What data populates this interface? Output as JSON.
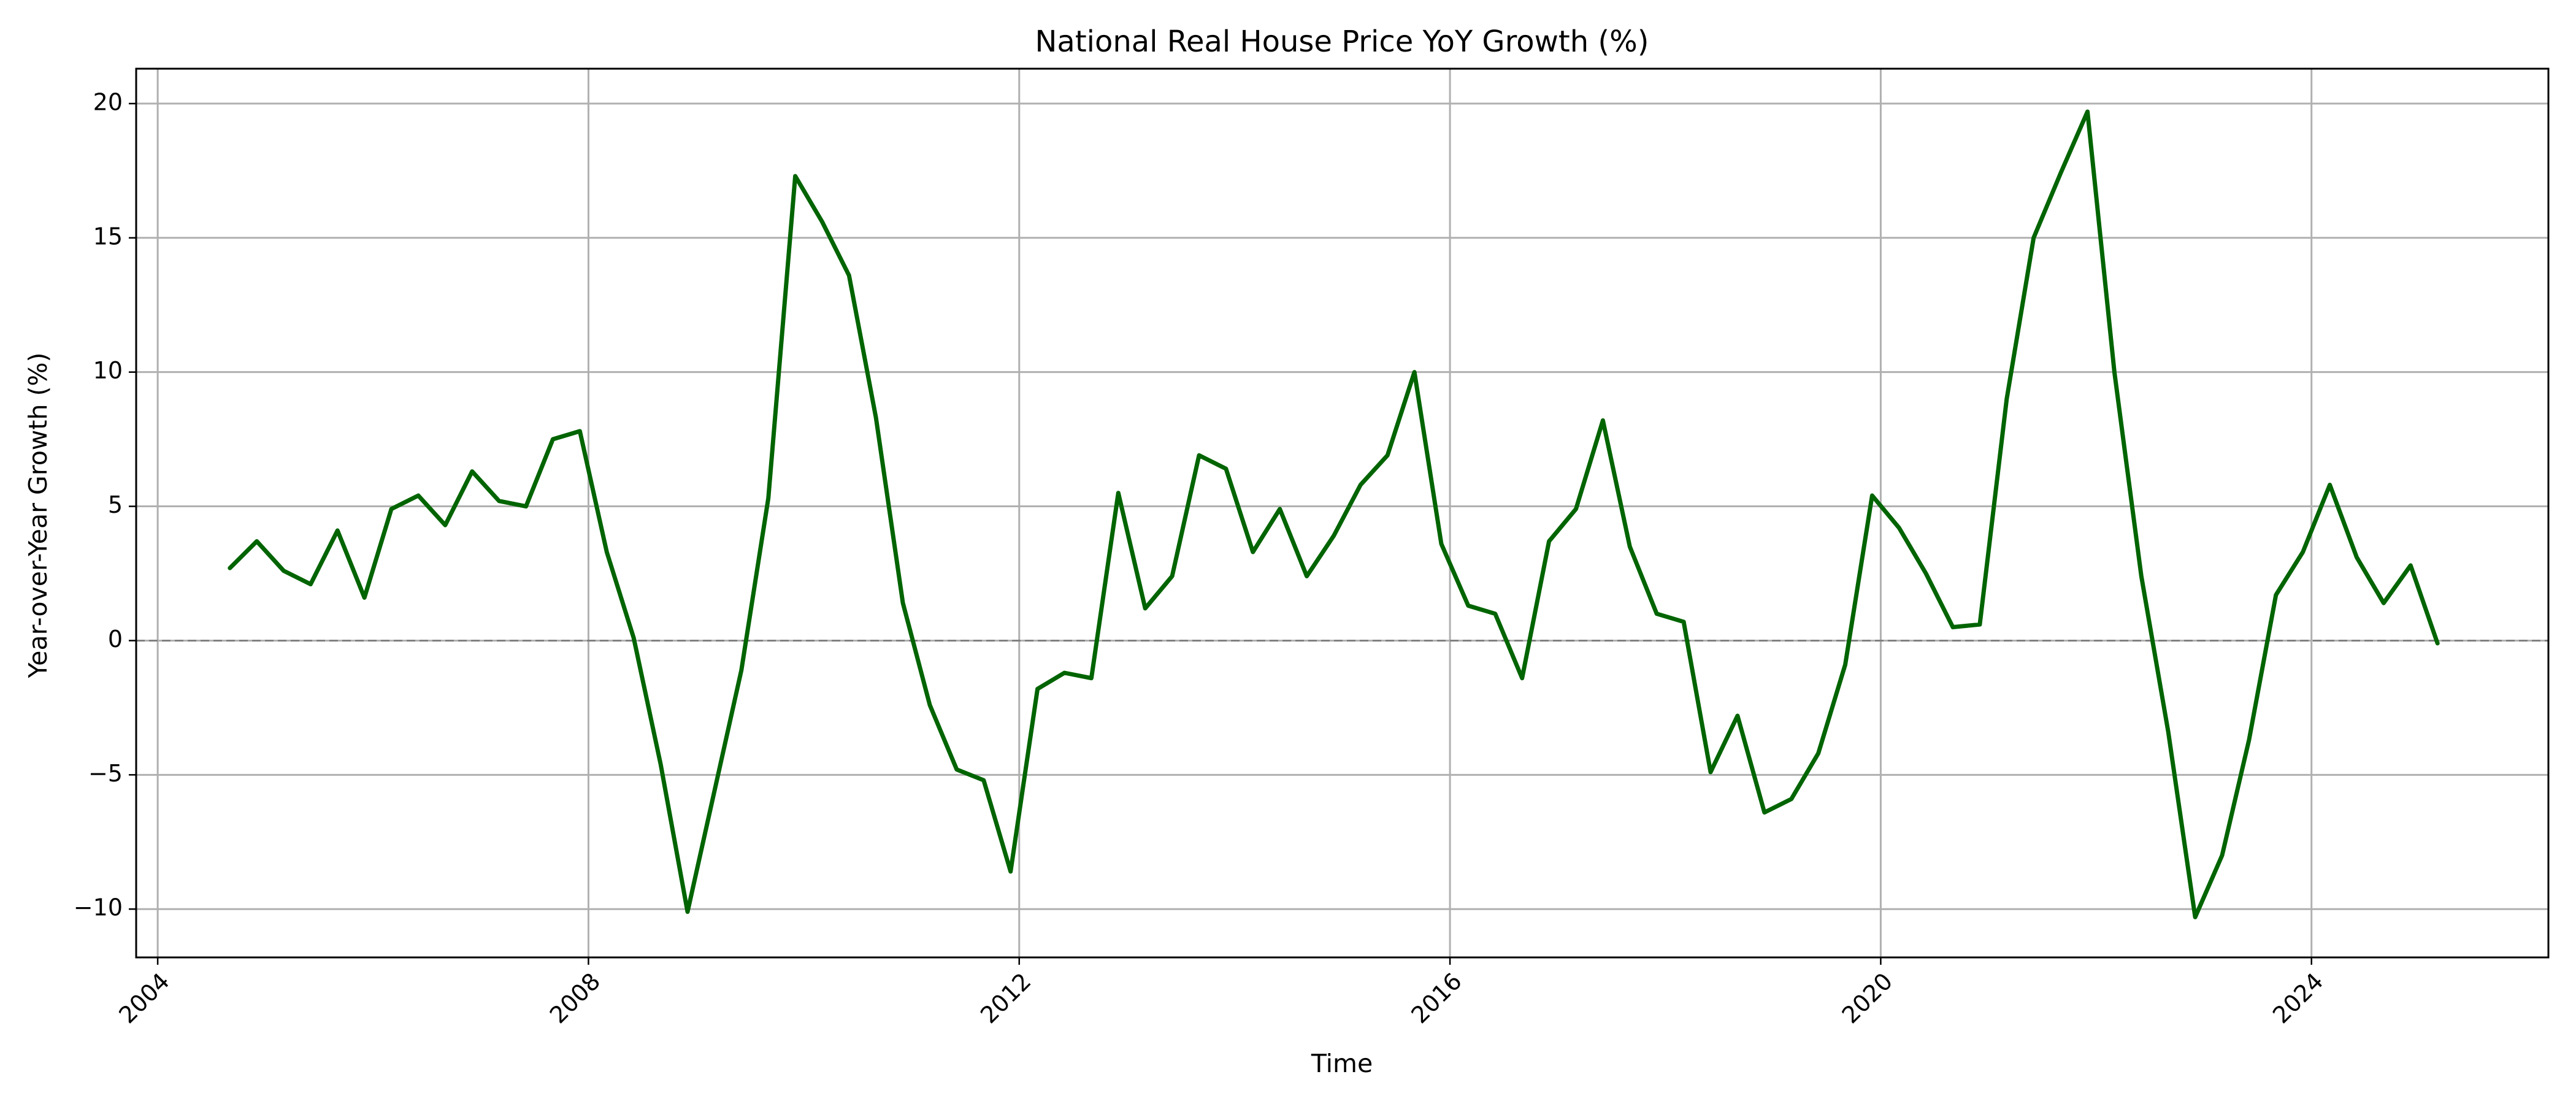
{
  "chart_data": {
    "type": "line",
    "title": "National Real House Price YoY Growth (%)",
    "xlabel": "Time",
    "ylabel": "Year-over-Year Growth (%)",
    "xlim": [
      2003.8,
      2026.2
    ],
    "ylim": [
      -11.8,
      21.3
    ],
    "xticks": [
      2004,
      2008,
      2012,
      2016,
      2020,
      2024
    ],
    "xtick_labels": [
      "2004",
      "2008",
      "2012",
      "2016",
      "2020",
      "2024"
    ],
    "yticks": [
      -10,
      -5,
      0,
      5,
      10,
      15,
      20
    ],
    "ytick_labels": [
      "−10",
      "−5",
      "0",
      "5",
      "10",
      "15",
      "20"
    ],
    "grid": true,
    "reference_line": {
      "y": 0,
      "style": "dashed",
      "color": "#808080"
    },
    "series": [
      {
        "color": "#006400",
        "points": [
          {
            "x": 2004.67,
            "y": 2.7
          },
          {
            "x": 2004.92,
            "y": 3.7
          },
          {
            "x": 2005.17,
            "y": 2.6
          },
          {
            "x": 2005.42,
            "y": 2.1
          },
          {
            "x": 2005.67,
            "y": 4.1
          },
          {
            "x": 2005.92,
            "y": 1.6
          },
          {
            "x": 2006.17,
            "y": 4.9
          },
          {
            "x": 2006.42,
            "y": 5.4
          },
          {
            "x": 2006.67,
            "y": 4.3
          },
          {
            "x": 2006.92,
            "y": 6.3
          },
          {
            "x": 2007.17,
            "y": 5.2
          },
          {
            "x": 2007.42,
            "y": 5.0
          },
          {
            "x": 2007.67,
            "y": 7.5
          },
          {
            "x": 2007.92,
            "y": 7.8
          },
          {
            "x": 2008.17,
            "y": 3.3
          },
          {
            "x": 2008.42,
            "y": 0.1
          },
          {
            "x": 2008.67,
            "y": -4.6
          },
          {
            "x": 2008.92,
            "y": -10.1
          },
          {
            "x": 2009.17,
            "y": -5.6
          },
          {
            "x": 2009.42,
            "y": -1.1
          },
          {
            "x": 2009.67,
            "y": 5.3
          },
          {
            "x": 2009.92,
            "y": 17.3
          },
          {
            "x": 2010.17,
            "y": 15.6
          },
          {
            "x": 2010.42,
            "y": 13.6
          },
          {
            "x": 2010.67,
            "y": 8.3
          },
          {
            "x": 2010.92,
            "y": 1.4
          },
          {
            "x": 2011.17,
            "y": -2.4
          },
          {
            "x": 2011.42,
            "y": -4.8
          },
          {
            "x": 2011.67,
            "y": -5.2
          },
          {
            "x": 2011.92,
            "y": -8.6
          },
          {
            "x": 2012.17,
            "y": -1.8
          },
          {
            "x": 2012.42,
            "y": -1.2
          },
          {
            "x": 2012.67,
            "y": -1.4
          },
          {
            "x": 2012.92,
            "y": 5.5
          },
          {
            "x": 2013.17,
            "y": 1.2
          },
          {
            "x": 2013.42,
            "y": 2.4
          },
          {
            "x": 2013.67,
            "y": 6.9
          },
          {
            "x": 2013.92,
            "y": 6.4
          },
          {
            "x": 2014.17,
            "y": 3.3
          },
          {
            "x": 2014.42,
            "y": 4.9
          },
          {
            "x": 2014.67,
            "y": 2.4
          },
          {
            "x": 2014.92,
            "y": 3.9
          },
          {
            "x": 2015.17,
            "y": 5.8
          },
          {
            "x": 2015.42,
            "y": 6.9
          },
          {
            "x": 2015.67,
            "y": 10.0
          },
          {
            "x": 2015.92,
            "y": 3.6
          },
          {
            "x": 2016.17,
            "y": 1.3
          },
          {
            "x": 2016.42,
            "y": 1.0
          },
          {
            "x": 2016.67,
            "y": -1.4
          },
          {
            "x": 2016.92,
            "y": 3.7
          },
          {
            "x": 2017.17,
            "y": 4.9
          },
          {
            "x": 2017.42,
            "y": 8.2
          },
          {
            "x": 2017.67,
            "y": 3.5
          },
          {
            "x": 2017.92,
            "y": 1.0
          },
          {
            "x": 2018.17,
            "y": 0.7
          },
          {
            "x": 2018.42,
            "y": -4.9
          },
          {
            "x": 2018.67,
            "y": -2.8
          },
          {
            "x": 2018.92,
            "y": -6.4
          },
          {
            "x": 2019.17,
            "y": -5.9
          },
          {
            "x": 2019.42,
            "y": -4.2
          },
          {
            "x": 2019.67,
            "y": -0.9
          },
          {
            "x": 2019.92,
            "y": 5.4
          },
          {
            "x": 2020.17,
            "y": 4.2
          },
          {
            "x": 2020.42,
            "y": 2.5
          },
          {
            "x": 2020.67,
            "y": 0.5
          },
          {
            "x": 2020.92,
            "y": 0.6
          },
          {
            "x": 2021.17,
            "y": 9.0
          },
          {
            "x": 2021.42,
            "y": 15.0
          },
          {
            "x": 2021.67,
            "y": 17.4
          },
          {
            "x": 2021.92,
            "y": 19.7
          },
          {
            "x": 2022.17,
            "y": 10.0
          },
          {
            "x": 2022.42,
            "y": 2.4
          },
          {
            "x": 2022.67,
            "y": -3.4
          },
          {
            "x": 2022.92,
            "y": -10.3
          },
          {
            "x": 2023.17,
            "y": -8.0
          },
          {
            "x": 2023.42,
            "y": -3.7
          },
          {
            "x": 2023.67,
            "y": 1.7
          },
          {
            "x": 2023.92,
            "y": 3.3
          },
          {
            "x": 2024.17,
            "y": 5.8
          },
          {
            "x": 2024.42,
            "y": 3.1
          },
          {
            "x": 2024.67,
            "y": 1.4
          },
          {
            "x": 2024.92,
            "y": 2.8
          },
          {
            "x": 2025.17,
            "y": -0.1
          }
        ]
      }
    ]
  }
}
